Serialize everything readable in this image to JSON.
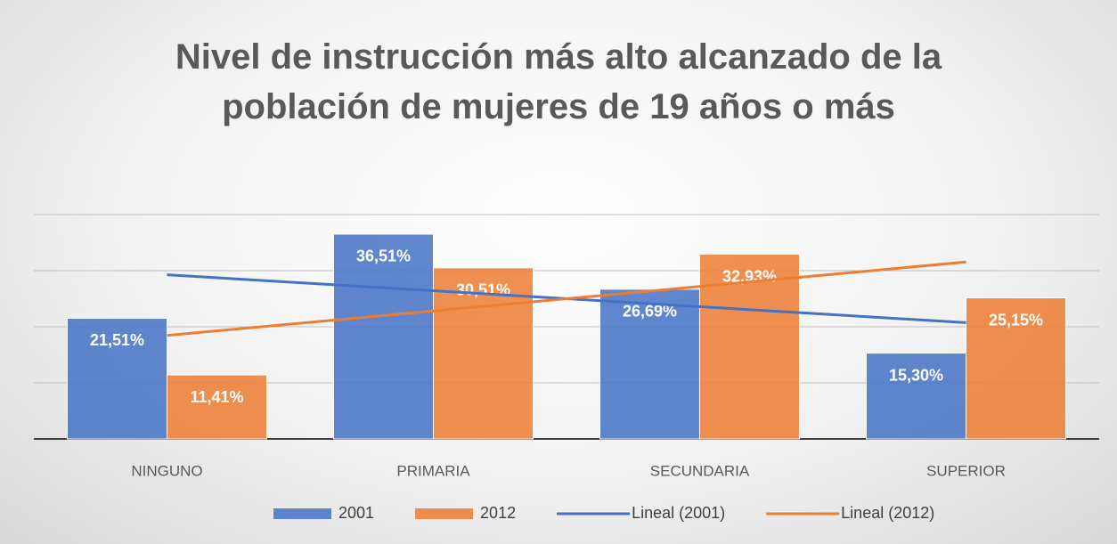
{
  "chart_data": {
    "type": "bar",
    "title": "Nivel de instrucción más alto alcanzado de la población de mujeres de 19 años o más",
    "categories": [
      "NINGUNO",
      "PRIMARIA",
      "SECUNDARIA",
      "SUPERIOR"
    ],
    "series": [
      {
        "name": "2001",
        "color": "#4472c4",
        "values": [
          21.51,
          36.51,
          26.69,
          15.3
        ],
        "value_labels": [
          "21,51%",
          "36,51%",
          "26,69%",
          "15,30%"
        ]
      },
      {
        "name": "2012",
        "color": "#ed7d31",
        "values": [
          11.41,
          30.51,
          32.93,
          25.15
        ],
        "value_labels": [
          "11,41%",
          "30,51%",
          "32,93%",
          "25,15%"
        ]
      }
    ],
    "trendlines": [
      {
        "name": "Lineal (2001)",
        "series": 0,
        "color": "#4472c4"
      },
      {
        "name": "Lineal (2012)",
        "series": 1,
        "color": "#ed7d31"
      }
    ],
    "ylim": [
      0,
      40
    ],
    "yticks": [
      0,
      10,
      20,
      30,
      40
    ],
    "grid": true
  }
}
